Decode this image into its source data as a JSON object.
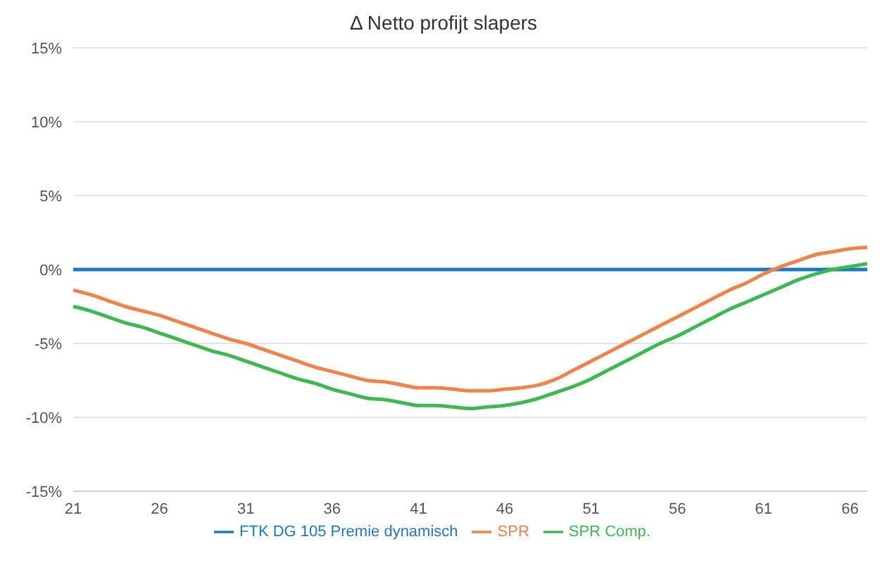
{
  "chart_data": {
    "type": "line",
    "title": "Δ Netto profijt slapers",
    "categories": [
      "21",
      null,
      null,
      null,
      null,
      "26",
      null,
      null,
      null,
      null,
      "31",
      null,
      null,
      null,
      null,
      "36",
      null,
      null,
      null,
      null,
      "41",
      null,
      null,
      null,
      null,
      "46",
      null,
      null,
      null,
      null,
      "51",
      null,
      null,
      null,
      null,
      "56",
      null,
      null,
      null,
      null,
      "61",
      null,
      null,
      null,
      null,
      "66",
      null
    ],
    "series": [
      {
        "name": "FTK DG 105 Premie dynamisch",
        "color": "#1f77c0",
        "values": [
          0,
          0,
          0,
          0,
          0,
          0,
          0,
          0,
          0,
          0,
          0,
          0,
          0,
          0,
          0,
          0,
          0,
          0,
          0,
          0,
          0,
          0,
          0,
          0,
          0,
          0,
          0,
          0,
          0,
          0,
          0,
          0,
          0,
          0,
          0,
          0,
          0,
          0,
          0,
          0,
          0,
          0,
          0,
          0,
          0,
          0,
          0
        ]
      },
      {
        "name": "SPR",
        "color": "#f0824a",
        "values": [
          -1.4,
          -1.7,
          -2.1,
          -2.5,
          -2.8,
          -3.1,
          -3.5,
          -3.9,
          -4.3,
          -4.7,
          -5.0,
          -5.4,
          -5.8,
          -6.2,
          -6.6,
          -6.9,
          -7.2,
          -7.5,
          -7.6,
          -7.8,
          -8.0,
          -8.0,
          -8.1,
          -8.2,
          -8.2,
          -8.1,
          -8.0,
          -7.8,
          -7.4,
          -6.8,
          -6.2,
          -5.6,
          -5.0,
          -4.4,
          -3.8,
          -3.2,
          -2.6,
          -2.0,
          -1.4,
          -0.9,
          -0.3,
          0.2,
          0.6,
          1.0,
          1.2,
          1.4,
          1.5
        ]
      },
      {
        "name": "SPR Comp.",
        "color": "#3cb950",
        "values": [
          -2.5,
          -2.8,
          -3.2,
          -3.6,
          -3.9,
          -4.3,
          -4.7,
          -5.1,
          -5.5,
          -5.8,
          -6.2,
          -6.6,
          -7.0,
          -7.4,
          -7.7,
          -8.1,
          -8.4,
          -8.7,
          -8.8,
          -9.0,
          -9.2,
          -9.2,
          -9.3,
          -9.4,
          -9.3,
          -9.2,
          -9.0,
          -8.7,
          -8.3,
          -7.9,
          -7.4,
          -6.8,
          -6.2,
          -5.6,
          -5.0,
          -4.5,
          -3.9,
          -3.3,
          -2.7,
          -2.2,
          -1.7,
          -1.2,
          -0.7,
          -0.3,
          0.0,
          0.2,
          0.4
        ]
      }
    ],
    "ylim": [
      -15,
      15
    ],
    "yticks": [
      {
        "value": -15,
        "label": "-15%"
      },
      {
        "value": -10,
        "label": "-10%"
      },
      {
        "value": -5,
        "label": "-5%"
      },
      {
        "value": 0,
        "label": "0%"
      },
      {
        "value": 5,
        "label": "5%"
      },
      {
        "value": 10,
        "label": "10%"
      },
      {
        "value": 15,
        "label": "15%"
      }
    ],
    "grid": "y",
    "legend": "bottom",
    "marker": "none",
    "line_style": "solid"
  }
}
